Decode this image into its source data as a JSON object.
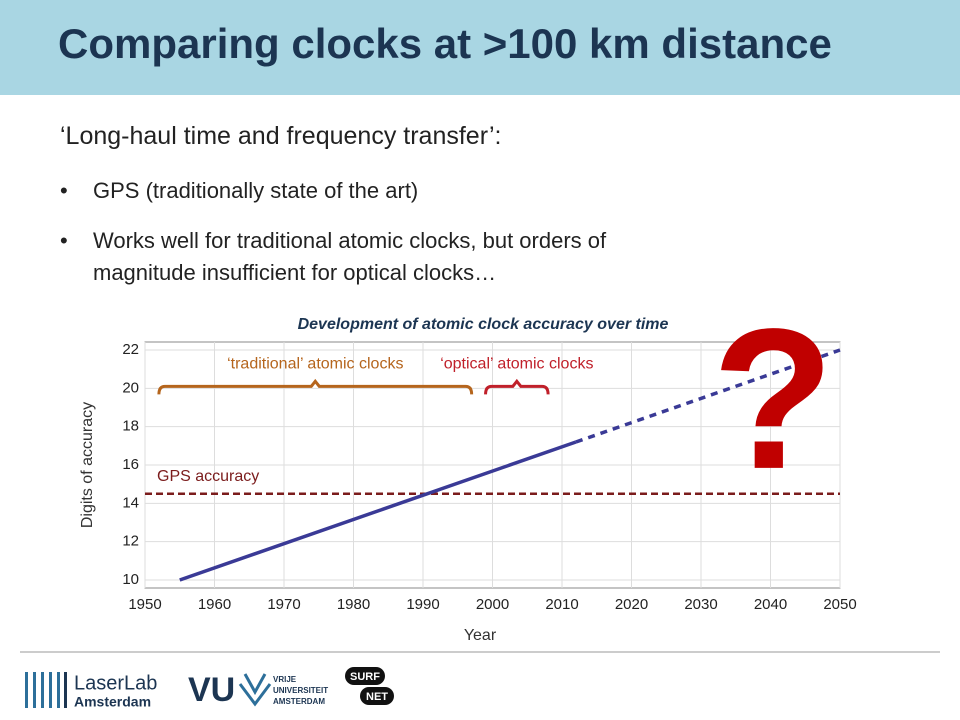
{
  "slide": {
    "title": "Comparing clocks at >100 km distance",
    "subtitle": "‘Long-haul time and frequency transfer’:",
    "bullets": [
      [
        "GPS (traditionally state of the art)"
      ],
      [
        "Works well for traditional atomic clocks, but orders of",
        "magnitude insufficient for optical clocks…"
      ]
    ]
  },
  "chart_data": {
    "type": "line",
    "title": "Development of atomic clock accuracy over time",
    "x_label": "Year",
    "y_label": "Digits of accuracy",
    "xlim": [
      1950,
      2050
    ],
    "xticks": [
      1950,
      1960,
      1970,
      1980,
      1990,
      2000,
      2010,
      2020,
      2030,
      2040,
      2050
    ],
    "ylim": [
      10,
      22
    ],
    "yticks": [
      10,
      12,
      14,
      16,
      18,
      20,
      22
    ],
    "grid": true,
    "lines": [
      {
        "x": [
          1955,
          2012
        ],
        "values": [
          10,
          17.2
        ],
        "style": "solid",
        "color": "#3a3a96"
      },
      {
        "x": [
          2012,
          2050
        ],
        "values": [
          17.2,
          22
        ],
        "style": "dashed",
        "color": "#3a3a96"
      }
    ],
    "reference_line": {
      "value": 14.5,
      "label": "GPS accuracy",
      "color": "#7b1c1c",
      "style": "dashed"
    },
    "brackets": [
      {
        "label": "‘traditional’ atomic clocks",
        "x": [
          1952,
          1997
        ],
        "y": 20,
        "color": "#b5651d"
      },
      {
        "label": "‘optical’ atomic clocks",
        "x": [
          1999,
          2008
        ],
        "y": 20,
        "color": "#c0202a"
      }
    ],
    "annotations": [
      {
        "text": "?",
        "color": "#c00000"
      }
    ]
  },
  "footer": {
    "laserlab": [
      "LaserLab",
      "Amsterdam"
    ],
    "vu": [
      "VU",
      "VRIJE",
      "UNIVERSITEIT",
      "AMSTERDAM"
    ],
    "surf": [
      "SURF",
      "NET"
    ]
  }
}
